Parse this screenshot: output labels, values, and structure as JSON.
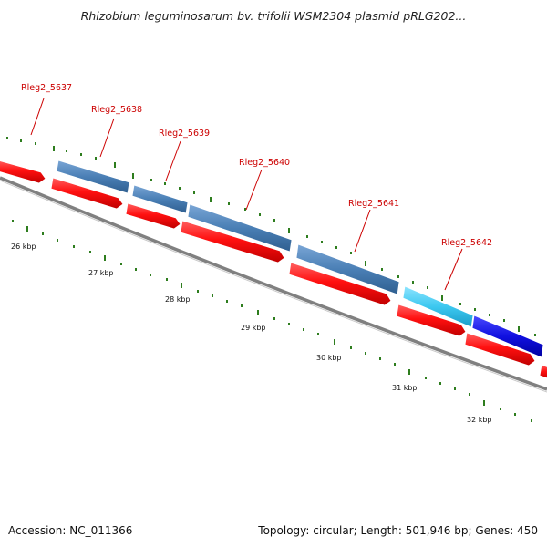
{
  "title": "Rhizobium leguminosarum bv. trifolii WSM2304 plasmid pRLG202...",
  "footer": {
    "accession": "Accession: NC_011366",
    "summary": "Topology: circular; Length: 501,946 bp; Genes: 450"
  },
  "colors": {
    "forward_gene": "#4a7fb5",
    "reverse_gene": "#ff1010",
    "highlight_light": "#3cc8f0",
    "highlight_dark": "#1010e0",
    "label": "#cc0000",
    "tick": "#2e7d1e",
    "backbone": "#808080"
  },
  "scale_labels": [
    "26 kbp",
    "27 kbp",
    "28 kbp",
    "29 kbp",
    "30 kbp",
    "31 kbp",
    "32 kbp"
  ],
  "locus_labels": [
    "Rleg2_5637",
    "Rleg2_5638",
    "Rleg2_5639",
    "Rleg2_5640",
    "Rleg2_5641",
    "Rleg2_5642"
  ]
}
